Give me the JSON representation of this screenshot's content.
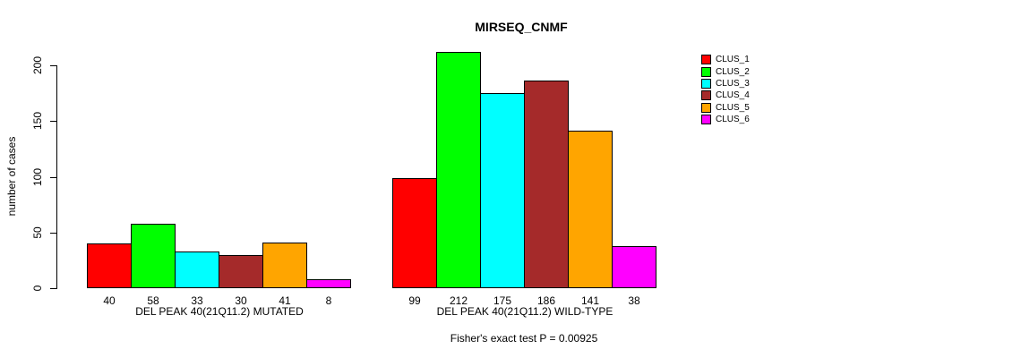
{
  "chart_data": {
    "type": "bar",
    "title": "MIRSEQ_CNMF",
    "ylabel": "number of cases",
    "xlabel": "",
    "yticks": [
      0,
      50,
      100,
      150,
      200
    ],
    "ylim": [
      0,
      215
    ],
    "grid": false,
    "legend_position": "right",
    "series": [
      {
        "name": "CLUS_1",
        "color": "#FF0000"
      },
      {
        "name": "CLUS_2",
        "color": "#00FF00"
      },
      {
        "name": "CLUS_3",
        "color": "#00FFFF"
      },
      {
        "name": "CLUS_4",
        "color": "#A52A2A"
      },
      {
        "name": "CLUS_5",
        "color": "#FFA500"
      },
      {
        "name": "CLUS_6",
        "color": "#FF00FF"
      }
    ],
    "groups": [
      {
        "label": "DEL PEAK 40(21Q11.2) MUTATED",
        "values": [
          40,
          58,
          33,
          30,
          41,
          8
        ]
      },
      {
        "label": "DEL PEAK 40(21Q11.2) WILD-TYPE",
        "values": [
          99,
          212,
          175,
          186,
          141,
          38
        ]
      }
    ],
    "annotation": "Fisher's exact test P = 0.00925"
  }
}
